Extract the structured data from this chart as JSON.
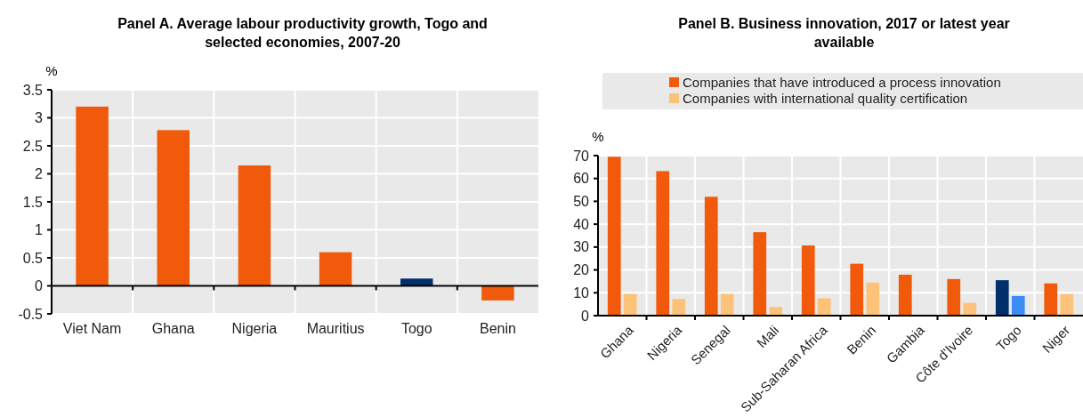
{
  "chart_data": [
    {
      "type": "bar",
      "title": "Panel A. Average labour productivity growth, Togo and selected economies, 2007-20",
      "ylabel": "%",
      "categories": [
        "Viet Nam",
        "Ghana",
        "Nigeria",
        "Mauritius",
        "Togo",
        "Benin"
      ],
      "series": [
        {
          "colors": [
            "#f05a0a",
            "#f05a0a",
            "#f05a0a",
            "#f05a0a",
            "#002f6c",
            "#f05a0a"
          ],
          "values": [
            3.2,
            2.78,
            2.15,
            0.6,
            0.13,
            -0.26
          ]
        }
      ],
      "ylim": [
        -0.5,
        3.5
      ],
      "yticks": [
        -0.5,
        0,
        0.5,
        1,
        1.5,
        2,
        2.5,
        3,
        3.5
      ],
      "grid": true,
      "legend": false
    },
    {
      "type": "bar",
      "title": "Panel B. Business innovation, 2017 or latest year available",
      "ylabel": "%",
      "categories": [
        "Ghana",
        "Nigeria",
        "Senegal",
        "Mali",
        "Sub-Saharan Africa",
        "Benin",
        "Gambia",
        "Côte d'Ivoire",
        "Togo",
        "Niger"
      ],
      "series": [
        {
          "name": "Companies that have introduced a process innovation",
          "color": "#f05a0a",
          "colors": [
            "#f05a0a",
            "#f05a0a",
            "#f05a0a",
            "#f05a0a",
            "#f05a0a",
            "#f05a0a",
            "#f05a0a",
            "#f05a0a",
            "#002f6c",
            "#f05a0a"
          ],
          "values": [
            69.5,
            63.2,
            52,
            36.5,
            30.7,
            22.7,
            17.9,
            16,
            15.5,
            14.1
          ]
        },
        {
          "name": "Companies with international quality certification",
          "color": "#fdc27a",
          "colors": [
            "#fdc27a",
            "#fdc27a",
            "#fdc27a",
            "#fdc27a",
            "#fdc27a",
            "#fdc27a",
            "#fdc27a",
            "#fdc27a",
            "#3b8cf5",
            "#fdc27a"
          ],
          "values": [
            9.5,
            7.3,
            9.5,
            3.8,
            7.6,
            14.5,
            0,
            5.6,
            8.6,
            9.4
          ]
        }
      ],
      "ylim": [
        0,
        70
      ],
      "yticks": [
        0,
        10,
        20,
        30,
        40,
        50,
        60,
        70
      ],
      "grid": true,
      "legend": "top"
    }
  ]
}
